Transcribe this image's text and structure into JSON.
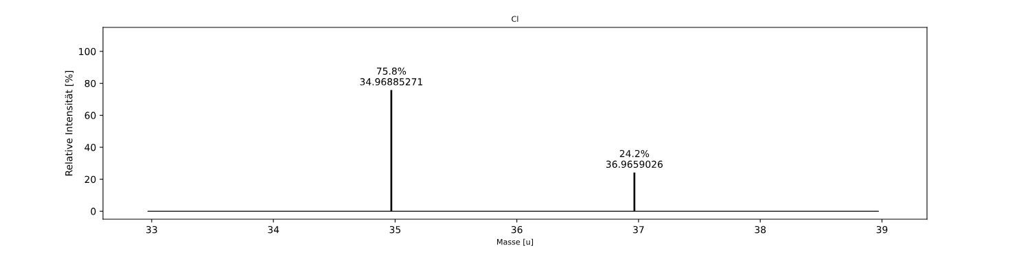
{
  "chart_data": {
    "type": "bar",
    "title": "Cl",
    "xlabel": "Masse [u]",
    "ylabel": "Relative Intensität [%]",
    "series": [
      {
        "type": "line",
        "color": "#000000",
        "x": [
          32.97,
          38.97
        ],
        "values": [
          0,
          0
        ]
      },
      {
        "color": "#000000",
        "x": [
          34.96885271,
          36.9659026
        ],
        "values": [
          75.8,
          24.2
        ],
        "value_labels": [
          "75.8%\n34.96885271",
          "24.2%\n36.9659026"
        ]
      }
    ],
    "xlim": [
      32.6,
      39.37
    ],
    "xticks": [
      33,
      34,
      35,
      36,
      37,
      38,
      39
    ],
    "ylim": [
      -5,
      115
    ],
    "yticks": [
      0,
      20,
      40,
      60,
      80,
      100
    ],
    "grid": false,
    "legend": false
  }
}
